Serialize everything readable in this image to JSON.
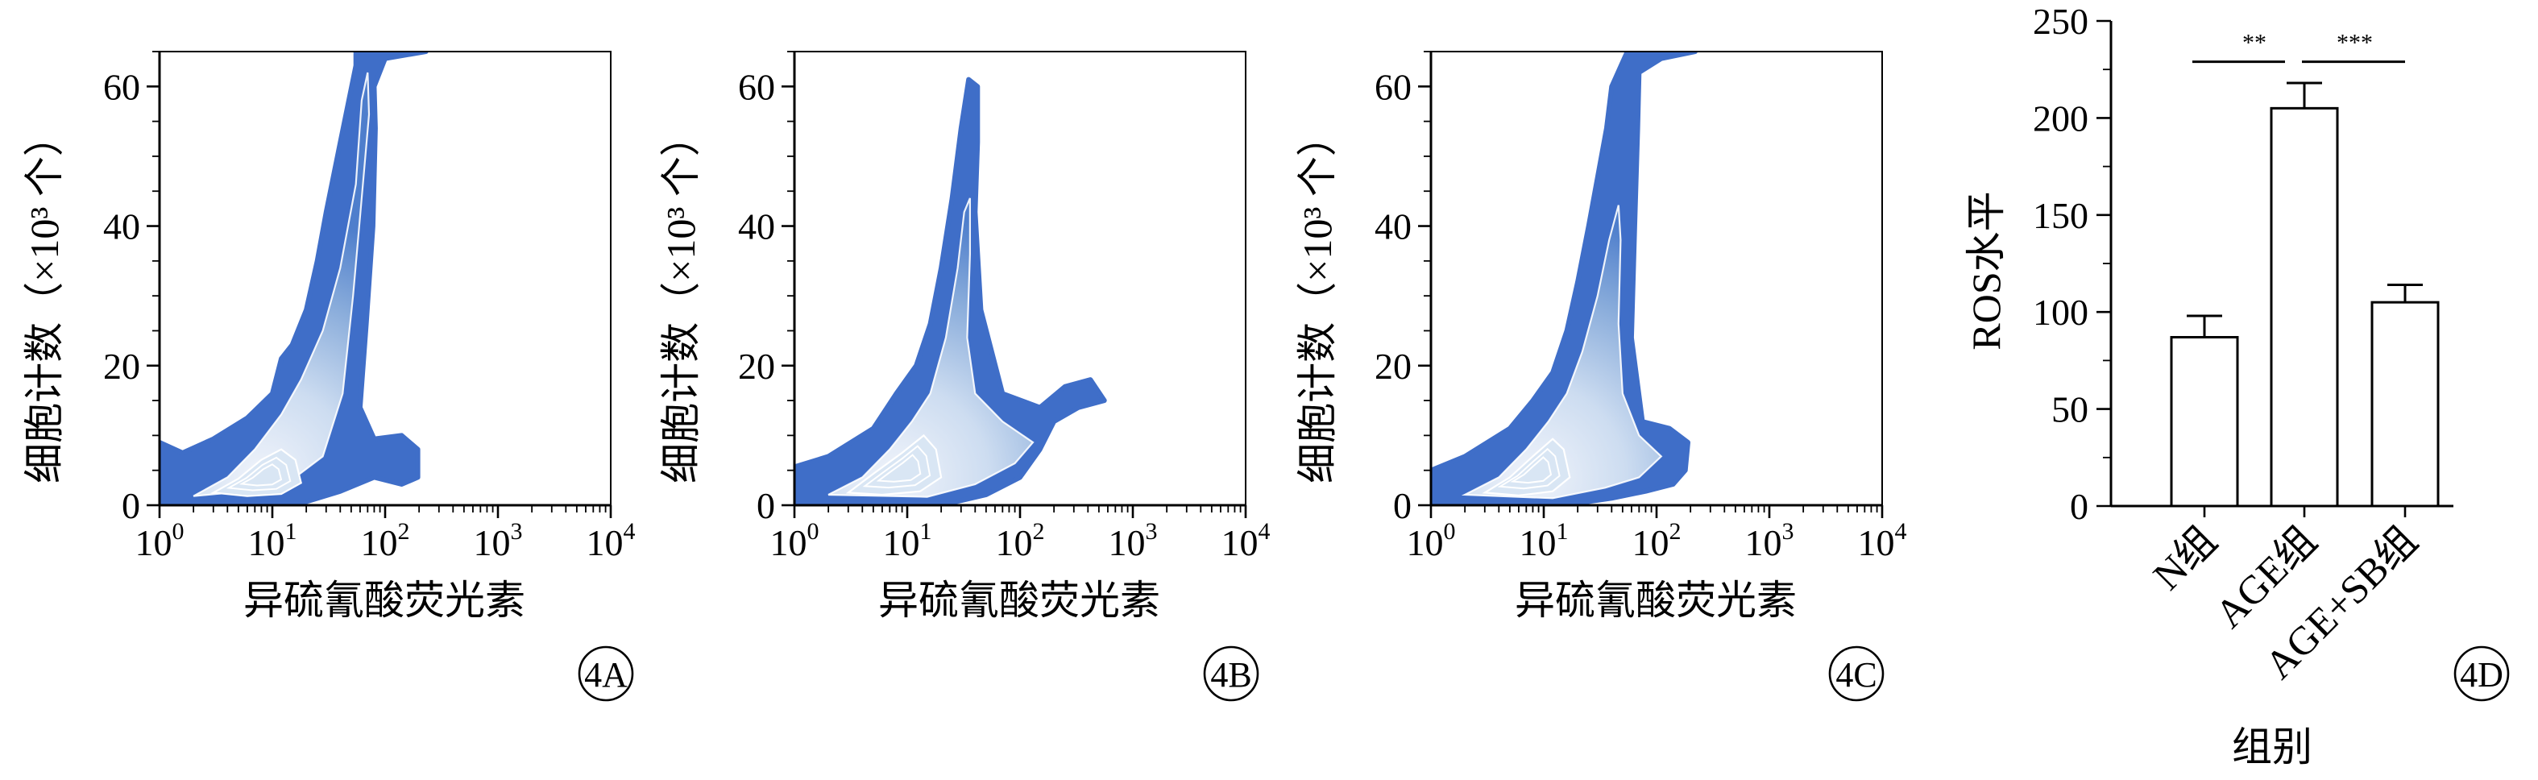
{
  "colors": {
    "density_outer": "#3f6ec8",
    "density_mid": "#8fb1dc",
    "density_inner": "#d9e6f4",
    "contour_line": "#ffffff",
    "axis": "#000000"
  },
  "panels": [
    {
      "id": "4A",
      "chart_data": {
        "type": "density",
        "xlabel": "异硫氰酸荧光素",
        "ylabel": "细胞计数（×10³ 个）",
        "x_scale": "log",
        "xlim": [
          1,
          10000
        ],
        "x_ticks": [
          1,
          10,
          100,
          1000,
          10000
        ],
        "x_tick_labels": [
          {
            "base": "10",
            "exp": "0"
          },
          {
            "base": "10",
            "exp": "1"
          },
          {
            "base": "10",
            "exp": "2"
          },
          {
            "base": "10",
            "exp": "3"
          },
          {
            "base": "10",
            "exp": "4"
          }
        ],
        "ylim": [
          0,
          65
        ],
        "y_ticks": [
          0,
          20,
          40,
          60
        ],
        "y_tick_labels": [
          "0",
          "20",
          "40",
          "60"
        ],
        "outline": [
          [
            1,
            0
          ],
          [
            1,
            9
          ],
          [
            1.6,
            7.5
          ],
          [
            3,
            9.5
          ],
          [
            6,
            12.5
          ],
          [
            10,
            16
          ],
          [
            12,
            21
          ],
          [
            15,
            23
          ],
          [
            20,
            28
          ],
          [
            25,
            35
          ],
          [
            30,
            42
          ],
          [
            40,
            52
          ],
          [
            55,
            63
          ],
          [
            55,
            65
          ],
          [
            230,
            65
          ],
          [
            100,
            64
          ],
          [
            80,
            60
          ],
          [
            82,
            54
          ],
          [
            78,
            40
          ],
          [
            68,
            26
          ],
          [
            60,
            14
          ],
          [
            80,
            9.5
          ],
          [
            140,
            10
          ],
          [
            195,
            8
          ],
          [
            195,
            4
          ],
          [
            140,
            3
          ],
          [
            80,
            4
          ],
          [
            40,
            2
          ],
          [
            20,
            0.5
          ],
          [
            10,
            0
          ]
        ],
        "inner_outline": [
          [
            2,
            1.3
          ],
          [
            4,
            4
          ],
          [
            7,
            8
          ],
          [
            12,
            13
          ],
          [
            18,
            18
          ],
          [
            28,
            25
          ],
          [
            40,
            34
          ],
          [
            55,
            46
          ],
          [
            62,
            58
          ],
          [
            70,
            62
          ],
          [
            72,
            56
          ],
          [
            62,
            44
          ],
          [
            52,
            30
          ],
          [
            42,
            16
          ],
          [
            28,
            7
          ],
          [
            12,
            2.5
          ]
        ],
        "core": [
          [
            3,
            1.8
          ],
          [
            5,
            3.8
          ],
          [
            8,
            6.5
          ],
          [
            12,
            8
          ],
          [
            16,
            6.5
          ],
          [
            18,
            3.2
          ],
          [
            12,
            1.6
          ],
          [
            6,
            1.3
          ]
        ]
      }
    },
    {
      "id": "4B",
      "chart_data": {
        "type": "density",
        "xlabel": "异硫氰酸荧光素",
        "ylabel": "细胞计数（×10³ 个）",
        "x_scale": "log",
        "xlim": [
          1,
          10000
        ],
        "x_ticks": [
          1,
          10,
          100,
          1000,
          10000
        ],
        "x_tick_labels": [
          {
            "base": "10",
            "exp": "0"
          },
          {
            "base": "10",
            "exp": "1"
          },
          {
            "base": "10",
            "exp": "2"
          },
          {
            "base": "10",
            "exp": "3"
          },
          {
            "base": "10",
            "exp": "4"
          }
        ],
        "ylim": [
          0,
          65
        ],
        "y_ticks": [
          0,
          20,
          40,
          60
        ],
        "y_tick_labels": [
          "0",
          "20",
          "40",
          "60"
        ],
        "outline": [
          [
            1,
            0
          ],
          [
            1,
            5.5
          ],
          [
            2,
            7
          ],
          [
            5,
            11
          ],
          [
            8,
            16
          ],
          [
            12,
            20
          ],
          [
            16,
            26
          ],
          [
            20,
            34
          ],
          [
            25,
            44
          ],
          [
            30,
            54
          ],
          [
            35,
            61
          ],
          [
            42,
            60
          ],
          [
            42,
            52
          ],
          [
            40,
            42
          ],
          [
            45,
            28
          ],
          [
            70,
            16
          ],
          [
            150,
            14
          ],
          [
            250,
            17
          ],
          [
            420,
            18
          ],
          [
            560,
            15
          ],
          [
            330,
            14
          ],
          [
            200,
            12
          ],
          [
            150,
            8
          ],
          [
            100,
            4
          ],
          [
            50,
            1.5
          ],
          [
            20,
            0
          ]
        ],
        "inner_outline": [
          [
            2,
            1.5
          ],
          [
            4,
            4
          ],
          [
            7,
            8
          ],
          [
            11,
            12
          ],
          [
            16,
            16
          ],
          [
            22,
            24
          ],
          [
            28,
            34
          ],
          [
            32,
            42
          ],
          [
            36,
            44
          ],
          [
            36,
            36
          ],
          [
            34,
            24
          ],
          [
            40,
            16
          ],
          [
            70,
            12
          ],
          [
            130,
            9
          ],
          [
            90,
            6
          ],
          [
            40,
            3
          ],
          [
            15,
            1.2
          ]
        ],
        "core": [
          [
            3,
            1.8
          ],
          [
            5,
            4.5
          ],
          [
            9,
            7.5
          ],
          [
            14,
            10
          ],
          [
            18,
            8
          ],
          [
            20,
            4
          ],
          [
            13,
            2
          ],
          [
            6,
            1.5
          ]
        ]
      }
    },
    {
      "id": "4C",
      "chart_data": {
        "type": "density",
        "xlabel": "异硫氰酸荧光素",
        "ylabel": "细胞计数（×10³ 个）",
        "x_scale": "log",
        "xlim": [
          1,
          10000
        ],
        "x_ticks": [
          1,
          10,
          100,
          1000,
          10000
        ],
        "x_tick_labels": [
          {
            "base": "10",
            "exp": "0"
          },
          {
            "base": "10",
            "exp": "1"
          },
          {
            "base": "10",
            "exp": "2"
          },
          {
            "base": "10",
            "exp": "3"
          },
          {
            "base": "10",
            "exp": "4"
          }
        ],
        "ylim": [
          0,
          65
        ],
        "y_ticks": [
          0,
          20,
          40,
          60
        ],
        "y_tick_labels": [
          "0",
          "20",
          "40",
          "60"
        ],
        "outline": [
          [
            1,
            0
          ],
          [
            1,
            5
          ],
          [
            2,
            7
          ],
          [
            5,
            11
          ],
          [
            8,
            15
          ],
          [
            12,
            19
          ],
          [
            16,
            25
          ],
          [
            20,
            32
          ],
          [
            25,
            40
          ],
          [
            30,
            47
          ],
          [
            36,
            54
          ],
          [
            40,
            60
          ],
          [
            55,
            65
          ],
          [
            220,
            65
          ],
          [
            110,
            64
          ],
          [
            70,
            62
          ],
          [
            68,
            54
          ],
          [
            64,
            40
          ],
          [
            60,
            24
          ],
          [
            75,
            12
          ],
          [
            130,
            11
          ],
          [
            190,
            9
          ],
          [
            180,
            5
          ],
          [
            140,
            3
          ],
          [
            80,
            2
          ],
          [
            40,
            1
          ],
          [
            15,
            0
          ]
        ],
        "inner_outline": [
          [
            2,
            1.5
          ],
          [
            4,
            4
          ],
          [
            7,
            8
          ],
          [
            11,
            12
          ],
          [
            16,
            16
          ],
          [
            22,
            22
          ],
          [
            30,
            30
          ],
          [
            38,
            38
          ],
          [
            46,
            43
          ],
          [
            48,
            38
          ],
          [
            46,
            26
          ],
          [
            50,
            16
          ],
          [
            70,
            10
          ],
          [
            110,
            7
          ],
          [
            70,
            4
          ],
          [
            35,
            2.5
          ],
          [
            12,
            1
          ]
        ],
        "core": [
          [
            3,
            1.8
          ],
          [
            5,
            4
          ],
          [
            8,
            7
          ],
          [
            12,
            9.5
          ],
          [
            15,
            8
          ],
          [
            17,
            4
          ],
          [
            12,
            2
          ],
          [
            6,
            1.4
          ]
        ]
      }
    }
  ],
  "bar_panel": {
    "id": "4D",
    "chart_data": {
      "type": "bar",
      "categories": [
        "N组",
        "AGE组",
        "AGE+SB组"
      ],
      "values": [
        87,
        205,
        105
      ],
      "errors": [
        11,
        13,
        9
      ],
      "ylabel": "ROS水平",
      "xlabel": "组别",
      "ylim": [
        0,
        250
      ],
      "y_ticks": [
        0,
        50,
        100,
        150,
        200,
        250
      ],
      "y_tick_labels": [
        "0",
        "50",
        "100",
        "150",
        "200",
        "250"
      ],
      "significance": [
        {
          "from": 0,
          "to": 1,
          "label": "**"
        },
        {
          "from": 1,
          "to": 2,
          "label": "***"
        }
      ]
    }
  }
}
